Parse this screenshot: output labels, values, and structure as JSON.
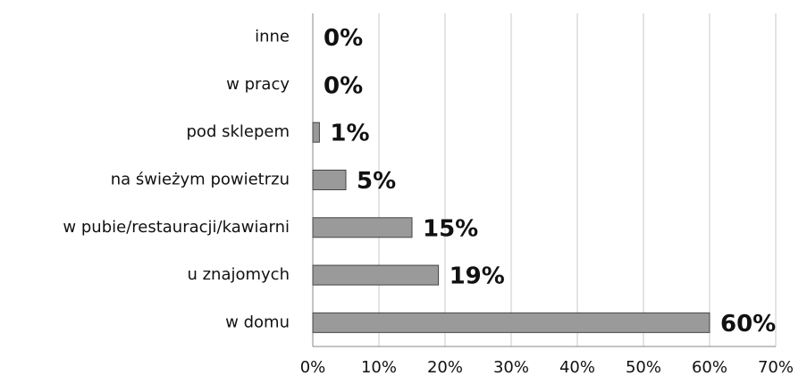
{
  "chart_data": {
    "type": "bar",
    "orientation": "horizontal",
    "categories": [
      "inne",
      "w pracy",
      "pod sklepem",
      "na świeżym powietrzu",
      "w pubie/restauracji/kawiarni",
      "u znajomych",
      "w domu"
    ],
    "values": [
      0,
      0,
      1,
      5,
      15,
      19,
      60
    ],
    "value_labels": [
      "0%",
      "0%",
      "1%",
      "5%",
      "15%",
      "19%",
      "60%"
    ],
    "color": "#9a9a9a",
    "xlim": [
      0,
      70
    ],
    "xticks": [
      {
        "value": 0,
        "label": "0%"
      },
      {
        "value": 10,
        "label": "10%"
      },
      {
        "value": 20,
        "label": "20%"
      },
      {
        "value": 30,
        "label": "30%"
      },
      {
        "value": 40,
        "label": "40%"
      },
      {
        "value": 50,
        "label": "50%"
      },
      {
        "value": 60,
        "label": "60%"
      },
      {
        "value": 70,
        "label": "70%"
      }
    ],
    "grid": true
  }
}
